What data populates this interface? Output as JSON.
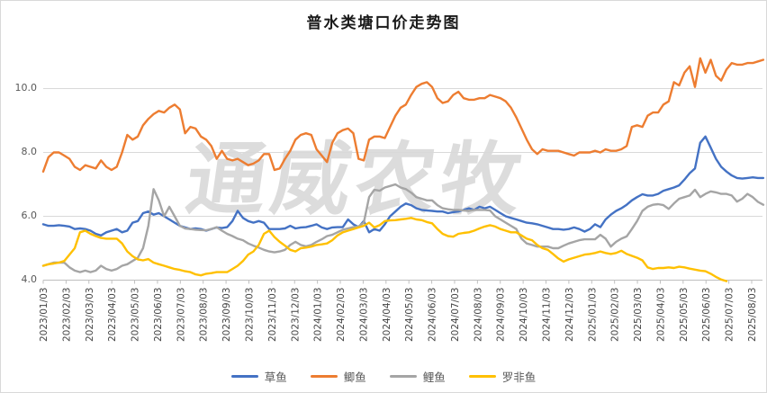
{
  "title": "普水类塘口价走势图",
  "watermark": "通威农牧",
  "y_axis": {
    "ticks": [
      "10.0",
      "8.0",
      "6.0",
      "4.0"
    ],
    "tick_values": [
      10,
      8,
      6,
      4
    ]
  },
  "x_axis": {
    "labels": [
      "2023/01/03",
      "2023/02/03",
      "2023/03/03",
      "2023/04/03",
      "2023/05/03",
      "2023/06/03",
      "2023/07/03",
      "2023/08/03",
      "2023/09/03",
      "2023/10/03",
      "2023/11/03",
      "2023/12/03",
      "2024/01/03",
      "2024/02/03",
      "2024/03/03",
      "2024/04/03",
      "2024/05/03",
      "2024/06/03",
      "2024/07/03",
      "2024/08/03",
      "2024/09/03",
      "2024/10/03",
      "2024/11/03",
      "2024/12/03",
      "2025/01/03",
      "2025/02/03",
      "2025/03/03",
      "2025/04/03",
      "2025/05/03",
      "2025/06/03",
      "2025/07/03",
      "2025/08/03"
    ]
  },
  "chart_data": {
    "type": "line",
    "title": "普水类塘口价走势图",
    "xlabel": "",
    "ylabel": "",
    "ylim": [
      4,
      11
    ],
    "grid": "horizontal",
    "legend_position": "bottom",
    "x_start": "2023/01/03",
    "x_interval": "weekly",
    "categories_monthly": [
      "2023/01/03",
      "2023/02/03",
      "2023/03/03",
      "2023/04/03",
      "2023/05/03",
      "2023/06/03",
      "2023/07/03",
      "2023/08/03",
      "2023/09/03",
      "2023/10/03",
      "2023/11/03",
      "2023/12/03",
      "2024/01/03",
      "2024/02/03",
      "2024/03/03",
      "2024/04/03",
      "2024/05/03",
      "2024/06/03",
      "2024/07/03",
      "2024/08/03",
      "2024/09/03",
      "2024/10/03",
      "2024/11/03",
      "2024/12/03",
      "2025/01/03",
      "2025/02/03",
      "2025/03/03",
      "2025/04/03",
      "2025/05/03",
      "2025/06/03",
      "2025/07/03",
      "2025/08/03"
    ],
    "series": [
      {
        "name": "草鱼",
        "color": "#4472C4",
        "values": [
          5.75,
          5.7,
          5.7,
          5.72,
          5.7,
          5.68,
          5.6,
          5.62,
          5.6,
          5.55,
          5.45,
          5.4,
          5.5,
          5.55,
          5.6,
          5.5,
          5.55,
          5.8,
          5.85,
          6.1,
          6.15,
          6.05,
          6.1,
          6.0,
          5.9,
          5.8,
          5.7,
          5.65,
          5.6,
          5.62,
          5.6,
          5.55,
          5.6,
          5.65,
          5.63,
          5.66,
          5.85,
          6.17,
          5.95,
          5.85,
          5.8,
          5.85,
          5.8,
          5.6,
          5.6,
          5.6,
          5.62,
          5.7,
          5.62,
          5.65,
          5.66,
          5.7,
          5.75,
          5.65,
          5.6,
          5.65,
          5.66,
          5.66,
          5.9,
          5.75,
          5.66,
          5.85,
          5.5,
          5.6,
          5.55,
          5.75,
          6.0,
          6.15,
          6.3,
          6.4,
          6.35,
          6.25,
          6.2,
          6.18,
          6.17,
          6.15,
          6.15,
          6.1,
          6.13,
          6.15,
          6.2,
          6.25,
          6.2,
          6.3,
          6.25,
          6.3,
          6.2,
          6.1,
          6.0,
          5.95,
          5.9,
          5.85,
          5.8,
          5.78,
          5.75,
          5.7,
          5.65,
          5.6,
          5.6,
          5.58,
          5.6,
          5.65,
          5.6,
          5.52,
          5.6,
          5.75,
          5.66,
          5.9,
          6.05,
          6.17,
          6.25,
          6.36,
          6.5,
          6.6,
          6.69,
          6.65,
          6.65,
          6.7,
          6.8,
          6.85,
          6.9,
          6.97,
          7.15,
          7.35,
          7.5,
          8.3,
          8.5,
          8.15,
          7.8,
          7.55,
          7.4,
          7.28,
          7.2,
          7.18,
          7.2,
          7.22,
          7.2,
          7.2
        ]
      },
      {
        "name": "鲫鱼",
        "color": "#ED7D31",
        "values": [
          7.4,
          7.85,
          8.0,
          8.0,
          7.9,
          7.8,
          7.55,
          7.45,
          7.6,
          7.55,
          7.5,
          7.75,
          7.55,
          7.45,
          7.55,
          8.0,
          8.55,
          8.4,
          8.5,
          8.85,
          9.05,
          9.2,
          9.3,
          9.25,
          9.4,
          9.5,
          9.35,
          8.6,
          8.8,
          8.75,
          8.5,
          8.4,
          8.2,
          7.8,
          8.05,
          7.8,
          7.75,
          7.8,
          7.7,
          7.6,
          7.65,
          7.75,
          7.95,
          7.95,
          7.45,
          7.5,
          7.8,
          8.05,
          8.4,
          8.55,
          8.6,
          8.55,
          8.1,
          7.9,
          7.7,
          8.3,
          8.6,
          8.7,
          8.75,
          8.6,
          7.8,
          7.75,
          8.4,
          8.5,
          8.5,
          8.45,
          8.8,
          9.15,
          9.4,
          9.5,
          9.8,
          10.05,
          10.15,
          10.2,
          10.05,
          9.7,
          9.55,
          9.6,
          9.8,
          9.9,
          9.7,
          9.65,
          9.65,
          9.7,
          9.7,
          9.8,
          9.75,
          9.7,
          9.6,
          9.4,
          9.1,
          8.75,
          8.4,
          8.1,
          7.95,
          8.1,
          8.05,
          8.05,
          8.05,
          8.0,
          7.95,
          7.9,
          8.0,
          8.0,
          8.0,
          8.05,
          8.0,
          8.1,
          8.05,
          8.05,
          8.1,
          8.2,
          8.8,
          8.85,
          8.8,
          9.15,
          9.25,
          9.25,
          9.5,
          9.6,
          10.2,
          10.1,
          10.5,
          10.7,
          10.05,
          10.95,
          10.5,
          10.9,
          10.4,
          10.25,
          10.6,
          10.8,
          10.75,
          10.75,
          10.8,
          10.8,
          10.85,
          10.9
        ]
      },
      {
        "name": "鲤鱼",
        "color": "#A5A5A5",
        "values": [
          4.45,
          4.5,
          4.55,
          4.55,
          4.55,
          4.4,
          4.3,
          4.25,
          4.3,
          4.25,
          4.3,
          4.45,
          4.35,
          4.3,
          4.35,
          4.45,
          4.5,
          4.6,
          4.7,
          5.0,
          5.7,
          6.85,
          6.5,
          6.0,
          6.3,
          6.0,
          5.7,
          5.62,
          5.6,
          5.58,
          5.57,
          5.56,
          5.6,
          5.66,
          5.55,
          5.45,
          5.38,
          5.3,
          5.25,
          5.15,
          5.08,
          5.02,
          4.95,
          4.9,
          4.87,
          4.9,
          4.95,
          5.1,
          5.2,
          5.1,
          5.06,
          5.1,
          5.2,
          5.28,
          5.38,
          5.42,
          5.5,
          5.58,
          5.62,
          5.66,
          5.68,
          5.8,
          6.6,
          6.83,
          6.8,
          6.9,
          6.95,
          7.0,
          6.9,
          6.85,
          6.74,
          6.6,
          6.55,
          6.5,
          6.5,
          6.35,
          6.25,
          6.22,
          6.2,
          6.2,
          6.18,
          6.17,
          6.2,
          6.2,
          6.2,
          6.18,
          6.0,
          5.9,
          5.8,
          5.7,
          5.6,
          5.3,
          5.15,
          5.1,
          5.05,
          5.05,
          5.05,
          5.0,
          5.0,
          5.08,
          5.15,
          5.2,
          5.25,
          5.28,
          5.28,
          5.28,
          5.42,
          5.3,
          5.05,
          5.2,
          5.3,
          5.37,
          5.6,
          5.85,
          6.17,
          6.3,
          6.36,
          6.38,
          6.35,
          6.23,
          6.4,
          6.55,
          6.6,
          6.65,
          6.83,
          6.6,
          6.7,
          6.78,
          6.75,
          6.7,
          6.7,
          6.65,
          6.46,
          6.55,
          6.7,
          6.6,
          6.45,
          6.36
        ]
      },
      {
        "name": "罗非鱼",
        "color": "#FFC000",
        "values": [
          4.45,
          4.5,
          4.52,
          4.55,
          4.6,
          4.8,
          5.0,
          5.5,
          5.55,
          5.45,
          5.38,
          5.32,
          5.3,
          5.3,
          5.3,
          5.15,
          4.9,
          4.75,
          4.65,
          4.62,
          4.66,
          4.55,
          4.5,
          4.45,
          4.4,
          4.35,
          4.32,
          4.28,
          4.25,
          4.18,
          4.15,
          4.2,
          4.22,
          4.25,
          4.25,
          4.25,
          4.35,
          4.45,
          4.6,
          4.8,
          4.9,
          5.1,
          5.45,
          5.55,
          5.35,
          5.2,
          5.08,
          4.95,
          4.9,
          5.0,
          5.02,
          5.05,
          5.1,
          5.12,
          5.15,
          5.25,
          5.4,
          5.5,
          5.55,
          5.6,
          5.65,
          5.7,
          5.8,
          5.65,
          5.72,
          5.85,
          5.87,
          5.88,
          5.9,
          5.92,
          5.95,
          5.9,
          5.88,
          5.82,
          5.78,
          5.6,
          5.45,
          5.38,
          5.36,
          5.45,
          5.48,
          5.5,
          5.55,
          5.62,
          5.68,
          5.72,
          5.68,
          5.6,
          5.55,
          5.5,
          5.5,
          5.4,
          5.3,
          5.25,
          5.1,
          5.0,
          4.95,
          4.82,
          4.68,
          4.58,
          4.65,
          4.7,
          4.75,
          4.8,
          4.82,
          4.85,
          4.9,
          4.85,
          4.82,
          4.85,
          4.92,
          4.82,
          4.76,
          4.7,
          4.62,
          4.4,
          4.35,
          4.38,
          4.38,
          4.4,
          4.38,
          4.42,
          4.4,
          4.36,
          4.33,
          4.3,
          4.28,
          4.2,
          4.1,
          4.02,
          3.97
        ]
      }
    ]
  },
  "legend": {
    "items": [
      {
        "label": "草鱼",
        "color": "#4472C4"
      },
      {
        "label": "鲫鱼",
        "color": "#ED7D31"
      },
      {
        "label": "鲤鱼",
        "color": "#A5A5A5"
      },
      {
        "label": "罗非鱼",
        "color": "#FFC000"
      }
    ]
  }
}
